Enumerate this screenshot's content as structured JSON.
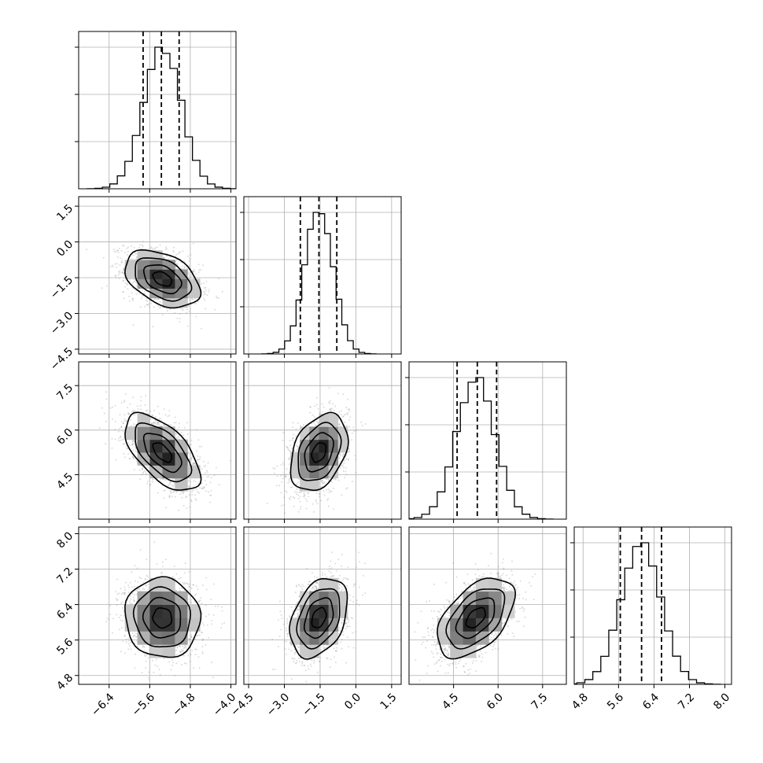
{
  "chart_data": {
    "type": "corner",
    "parameters": 4,
    "ranges": [
      [
        -7.0,
        -3.9
      ],
      [
        -4.7,
        1.9
      ],
      [
        3.0,
        8.3
      ],
      [
        4.6,
        8.15
      ]
    ],
    "ticks": [
      {
        "values": [
          -6.4,
          -5.6,
          -4.8,
          -4.0
        ],
        "labels": [
          "−6.4",
          "−5.6",
          "−4.8",
          "−4.0"
        ]
      },
      {
        "values": [
          -4.5,
          -3.0,
          -1.5,
          0.0,
          1.5
        ],
        "labels": [
          "−4.5",
          "−3.0",
          "−1.5",
          "0.0",
          "1.5"
        ]
      },
      {
        "values": [
          4.5,
          6.0,
          7.5
        ],
        "labels": [
          "4.5",
          "6.0",
          "7.5"
        ]
      },
      {
        "values": [
          4.8,
          5.6,
          6.4,
          7.2,
          8.0
        ],
        "labels": [
          "4.8",
          "5.6",
          "6.4",
          "7.2",
          "8.0"
        ]
      }
    ],
    "means": [
      -5.35,
      -1.55,
      5.25,
      6.1
    ],
    "sigmas": [
      0.37,
      0.6,
      0.65,
      0.45
    ],
    "quantiles": [
      [
        -5.73,
        -5.37,
        -5.02
      ],
      [
        -2.33,
        -1.55,
        -0.8
      ],
      [
        4.62,
        5.3,
        5.95
      ],
      [
        5.64,
        6.12,
        6.57
      ]
    ],
    "correlations": [
      [
        1,
        -0.4,
        -0.6,
        -0.05
      ],
      [
        -0.4,
        1,
        0.35,
        0.35
      ],
      [
        -0.6,
        0.35,
        1,
        0.5
      ],
      [
        -0.05,
        0.35,
        0.5,
        1
      ]
    ],
    "hist_bins": 20,
    "contour_levels": [
      0.5,
      1.0,
      1.5,
      2.0
    ],
    "grid": true,
    "colors": {
      "line": "#000000",
      "points": "#9a9a9a",
      "grid": "#b0b0b0"
    }
  }
}
